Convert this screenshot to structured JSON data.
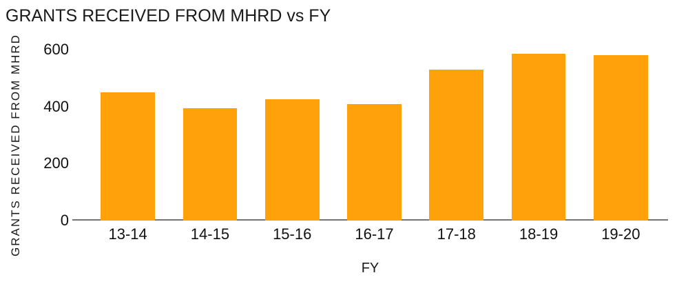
{
  "title": "GRANTS RECEIVED FROM MHRD vs FY",
  "colors": {
    "bar": "#FFA10A",
    "axis_line": "#737373",
    "text": "#1a1a1a"
  },
  "chart_data": {
    "type": "bar",
    "title": "GRANTS RECEIVED FROM MHRD vs FY",
    "categories": [
      "13-14",
      "14-15",
      "15-16",
      "16-17",
      "17-18",
      "18-19",
      "19-20"
    ],
    "values": [
      450,
      395,
      425,
      410,
      530,
      585,
      580
    ],
    "xlabel": "FY",
    "ylabel": "GRANTS RECEIVED FROM MHRD",
    "ylim": [
      0,
      600
    ],
    "yticks": [
      0,
      200,
      400,
      600
    ],
    "grid": false,
    "legend": "none",
    "bar_color": "#FFA10A"
  }
}
